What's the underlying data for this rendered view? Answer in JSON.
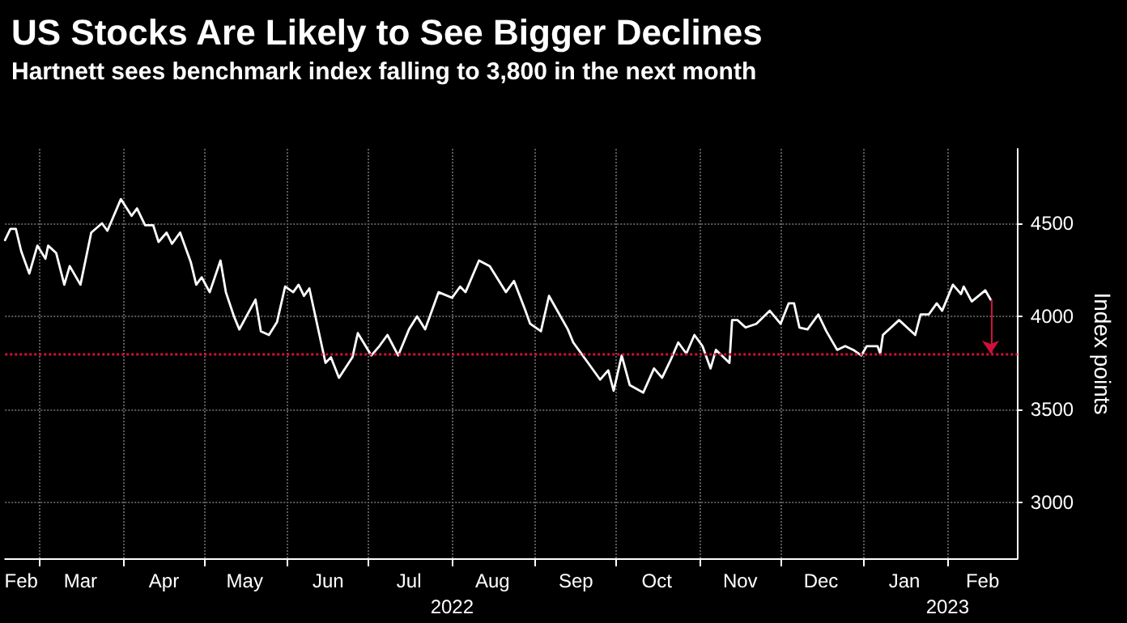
{
  "chart_data": {
    "type": "line",
    "title": "US Stocks Are Likely to See Bigger Declines",
    "subtitle": "Hartnett sees benchmark index falling to 3,800 in the next month",
    "ylabel": "Index points",
    "x": [
      "2022-02-16",
      "2022-02-18",
      "2022-02-20",
      "2022-02-22",
      "2022-02-25",
      "2022-02-28",
      "2022-03-03",
      "2022-03-04",
      "2022-03-07",
      "2022-03-10",
      "2022-03-12",
      "2022-03-16",
      "2022-03-20",
      "2022-03-24",
      "2022-03-26",
      "2022-03-31",
      "2022-04-04",
      "2022-04-06",
      "2022-04-09",
      "2022-04-12",
      "2022-04-14",
      "2022-04-17",
      "2022-04-19",
      "2022-04-22",
      "2022-04-26",
      "2022-04-28",
      "2022-04-30",
      "2022-05-03",
      "2022-05-07",
      "2022-05-09",
      "2022-05-12",
      "2022-05-14",
      "2022-05-17",
      "2022-05-20",
      "2022-05-22",
      "2022-05-25",
      "2022-05-28",
      "2022-05-31",
      "2022-06-03",
      "2022-06-05",
      "2022-06-07",
      "2022-06-09",
      "2022-06-15",
      "2022-06-17",
      "2022-06-20",
      "2022-06-25",
      "2022-06-27",
      "2022-07-02",
      "2022-07-05",
      "2022-07-08",
      "2022-07-12",
      "2022-07-14",
      "2022-07-16",
      "2022-07-19",
      "2022-07-22",
      "2022-07-27",
      "2022-08-01",
      "2022-08-04",
      "2022-08-06",
      "2022-08-11",
      "2022-08-15",
      "2022-08-21",
      "2022-08-24",
      "2022-08-28",
      "2022-08-30",
      "2022-09-03",
      "2022-09-06",
      "2022-09-13",
      "2022-09-15",
      "2022-09-21",
      "2022-09-25",
      "2022-09-28",
      "2022-09-30",
      "2022-10-03",
      "2022-10-06",
      "2022-10-11",
      "2022-10-15",
      "2022-10-18",
      "2022-10-21",
      "2022-10-24",
      "2022-10-27",
      "2022-10-30",
      "2022-11-02",
      "2022-11-05",
      "2022-11-07",
      "2022-11-12",
      "2022-11-13",
      "2022-11-15",
      "2022-11-18",
      "2022-11-22",
      "2022-11-27",
      "2022-12-01",
      "2022-12-04",
      "2022-12-06",
      "2022-12-08",
      "2022-12-11",
      "2022-12-15",
      "2022-12-18",
      "2022-12-22",
      "2022-12-25",
      "2022-12-28",
      "2022-12-31",
      "2023-01-02",
      "2023-01-06",
      "2023-01-07",
      "2023-01-08",
      "2023-01-14",
      "2023-01-20",
      "2023-01-22",
      "2023-01-25",
      "2023-01-28",
      "2023-01-30",
      "2023-02-03",
      "2023-02-06",
      "2023-02-07",
      "2023-02-10",
      "2023-02-15",
      "2023-02-17"
    ],
    "series": [
      {
        "color": "#ffffff",
        "values": [
          4410,
          4470,
          4470,
          4350,
          4230,
          4380,
          4310,
          4380,
          4340,
          4170,
          4270,
          4170,
          4450,
          4500,
          4460,
          4630,
          4540,
          4580,
          4490,
          4490,
          4400,
          4450,
          4390,
          4450,
          4290,
          4170,
          4210,
          4130,
          4300,
          4130,
          4000,
          3930,
          4010,
          4090,
          3920,
          3900,
          3970,
          4160,
          4130,
          4170,
          4110,
          4150,
          3750,
          3780,
          3670,
          3780,
          3910,
          3790,
          3840,
          3900,
          3790,
          3860,
          3930,
          4000,
          3930,
          4130,
          4100,
          4160,
          4130,
          4300,
          4270,
          4130,
          4190,
          4040,
          3960,
          3920,
          4110,
          3930,
          3860,
          3740,
          3660,
          3710,
          3600,
          3790,
          3630,
          3590,
          3720,
          3670,
          3760,
          3860,
          3800,
          3900,
          3840,
          3720,
          3820,
          3750,
          3980,
          3980,
          3940,
          3960,
          4030,
          3960,
          4070,
          4070,
          3940,
          3930,
          4010,
          3920,
          3820,
          3840,
          3820,
          3790,
          3840,
          3840,
          3800,
          3900,
          3980,
          3900,
          4010,
          4010,
          4070,
          4030,
          4170,
          4120,
          4160,
          4080,
          4140,
          4090
        ]
      }
    ],
    "xlim": [
      "2022-02-16",
      "2023-02-27"
    ],
    "ylim": [
      2700,
      4900
    ],
    "yticks": [
      3000,
      3500,
      4000,
      4500
    ],
    "xticks": [
      {
        "value": "2022-02-22",
        "label": "Feb"
      },
      {
        "value": "2022-03-01",
        "label": null
      },
      {
        "value": "2022-03-16",
        "label": "Mar"
      },
      {
        "value": "2022-04-01",
        "label": null
      },
      {
        "value": "2022-04-16",
        "label": "Apr"
      },
      {
        "value": "2022-05-01",
        "label": null
      },
      {
        "value": "2022-05-16",
        "label": "May"
      },
      {
        "value": "2022-06-01",
        "label": null
      },
      {
        "value": "2022-06-16",
        "label": "Jun"
      },
      {
        "value": "2022-07-01",
        "label": null
      },
      {
        "value": "2022-07-16",
        "label": "Jul"
      },
      {
        "value": "2022-08-01",
        "label": null
      },
      {
        "value": "2022-08-16",
        "label": "Aug"
      },
      {
        "value": "2022-09-01",
        "label": null
      },
      {
        "value": "2022-09-16",
        "label": "Sep"
      },
      {
        "value": "2022-10-01",
        "label": null
      },
      {
        "value": "2022-10-16",
        "label": "Oct"
      },
      {
        "value": "2022-11-01",
        "label": null
      },
      {
        "value": "2022-11-16",
        "label": "Nov"
      },
      {
        "value": "2022-12-01",
        "label": null
      },
      {
        "value": "2022-12-16",
        "label": "Dec"
      },
      {
        "value": "2023-01-01",
        "label": null
      },
      {
        "value": "2023-01-16",
        "label": "Jan"
      },
      {
        "value": "2023-02-01",
        "label": null
      },
      {
        "value": "2023-02-14",
        "label": "Feb"
      }
    ],
    "ref_lines": [
      {
        "axis": "y",
        "value": 3800,
        "color": "#d0103a",
        "line_style": "dotted"
      }
    ],
    "x2lim": [
      "2022-02-16",
      "2023-02-27"
    ],
    "x2ticks": [
      {
        "value": "2022-08-01",
        "label": "2022"
      },
      {
        "value": "2023-02-01",
        "label": "2023"
      }
    ],
    "grid": true,
    "marker": "none",
    "line_style": "solid"
  }
}
